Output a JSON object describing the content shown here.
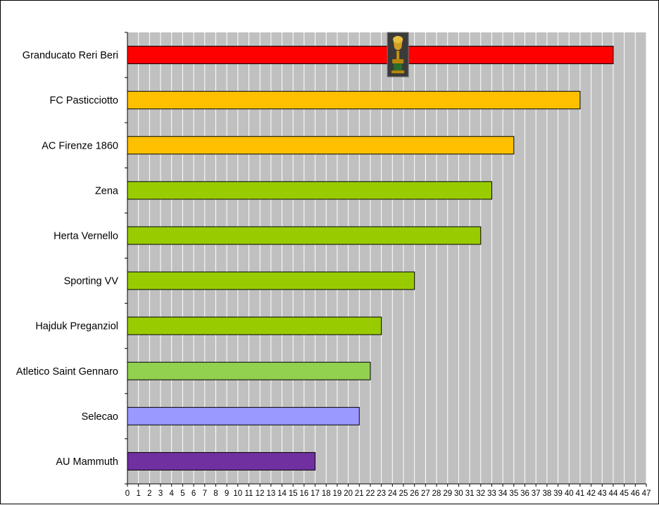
{
  "chart_data": {
    "type": "bar",
    "orientation": "horizontal",
    "title": "",
    "xlabel": "",
    "ylabel": "",
    "xlim": [
      0,
      47
    ],
    "x_ticks": [
      0,
      1,
      2,
      3,
      4,
      5,
      6,
      7,
      8,
      9,
      10,
      11,
      12,
      13,
      14,
      15,
      16,
      17,
      18,
      19,
      20,
      21,
      22,
      23,
      24,
      25,
      26,
      27,
      28,
      29,
      30,
      31,
      32,
      33,
      34,
      35,
      36,
      37,
      38,
      39,
      40,
      41,
      42,
      43,
      44,
      45,
      46,
      47
    ],
    "grid": true,
    "legend": "none",
    "plot_background": "#c0c0c0",
    "gridline_color": "#ffffff",
    "categories": [
      "Granducato Reri Beri",
      "FC Pasticciotto",
      "AC Firenze 1860",
      "Zena",
      "Herta Vernello",
      "Sporting VV",
      "Hajduk Preganziol",
      "Atletico Saint Gennaro",
      "Selecao",
      "AU Mammuth"
    ],
    "values": [
      44,
      41,
      35,
      33,
      32,
      26,
      23,
      22,
      21,
      17
    ],
    "colors": [
      "#ff0000",
      "#ffc000",
      "#ffc000",
      "#99cc00",
      "#99cc00",
      "#99cc00",
      "#99cc00",
      "#92d050",
      "#9999ff",
      "#7030a0"
    ],
    "annotations": [
      {
        "icon": "trophy-icon",
        "category": "Granducato Reri Beri",
        "at_value": 24.5
      }
    ]
  }
}
